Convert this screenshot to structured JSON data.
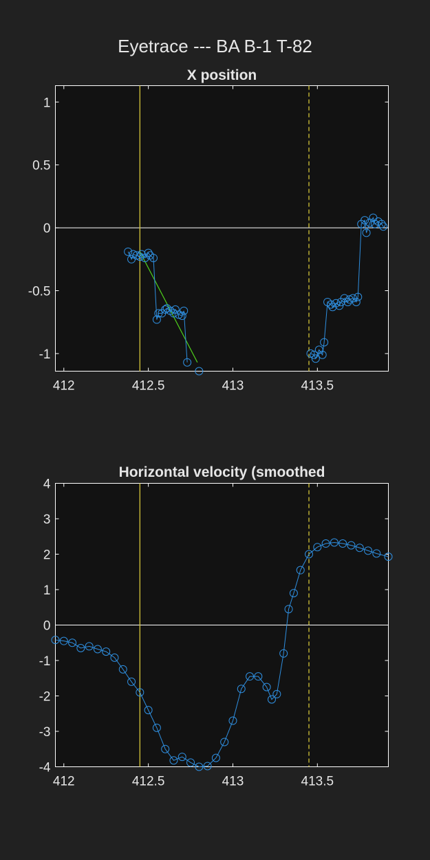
{
  "figure_title": "Eyetrace --- BA B-1 T-82",
  "colors": {
    "background": "#212121",
    "axes_background": "#121212",
    "axes_edge": "#ffffff",
    "text": "#e6e6e6",
    "data": "#2f8fe0",
    "fit_line": "#4fd11c",
    "event_line": "#d6c63a",
    "zero_line": "#ffffff"
  },
  "chart_data": [
    {
      "type": "line",
      "title": "X position",
      "xlabel": "",
      "ylabel": "",
      "xlim": [
        411.95,
        413.92
      ],
      "ylim": [
        -1.14,
        1.13
      ],
      "xticks": [
        412,
        412.5,
        413,
        413.5
      ],
      "xtick_labels": [
        "412",
        "412.5",
        "413",
        "413.5"
      ],
      "yticks": [
        1,
        0.5,
        0,
        -0.5,
        -1
      ],
      "ytick_labels": [
        "1",
        "0.5",
        "0",
        "-0.5",
        "-1"
      ],
      "grid": false,
      "marker": "circle-open",
      "series": [
        {
          "values": [
            [
              412.38,
              -0.19
            ],
            [
              412.4,
              -0.25
            ],
            [
              412.41,
              -0.21
            ],
            [
              412.43,
              -0.22
            ],
            [
              412.45,
              -0.23
            ],
            [
              412.46,
              -0.21
            ],
            [
              412.48,
              -0.24
            ],
            [
              412.5,
              -0.2
            ],
            [
              412.51,
              -0.22
            ],
            [
              412.53,
              -0.24
            ],
            [
              412.55,
              -0.73
            ],
            [
              412.56,
              -0.68
            ],
            [
              412.58,
              -0.68
            ],
            [
              412.6,
              -0.65
            ],
            [
              412.61,
              -0.64
            ],
            [
              412.63,
              -0.66
            ],
            [
              412.65,
              -0.68
            ],
            [
              412.66,
              -0.65
            ],
            [
              412.68,
              -0.69
            ],
            [
              412.7,
              -0.7
            ],
            [
              412.71,
              -0.66
            ],
            [
              412.73,
              -1.07
            ]
          ]
        },
        {
          "values": [
            [
              412.8,
              -1.14
            ]
          ],
          "line": false
        },
        {
          "values": [
            [
              413.46,
              -1.0
            ],
            [
              413.48,
              -1.01
            ],
            [
              413.49,
              -1.04
            ],
            [
              413.51,
              -0.97
            ],
            [
              413.53,
              -1.01
            ],
            [
              413.54,
              -0.91
            ],
            [
              413.56,
              -0.59
            ],
            [
              413.58,
              -0.61
            ],
            [
              413.59,
              -0.63
            ],
            [
              413.61,
              -0.6
            ],
            [
              413.63,
              -0.62
            ],
            [
              413.64,
              -0.59
            ],
            [
              413.66,
              -0.56
            ],
            [
              413.68,
              -0.59
            ],
            [
              413.69,
              -0.57
            ],
            [
              413.71,
              -0.56
            ],
            [
              413.73,
              -0.59
            ],
            [
              413.74,
              -0.55
            ],
            [
              413.76,
              0.03
            ],
            [
              413.78,
              0.06
            ],
            [
              413.79,
              -0.04
            ],
            [
              413.81,
              0.04
            ],
            [
              413.83,
              0.08
            ],
            [
              413.84,
              0.03
            ],
            [
              413.86,
              0.05
            ],
            [
              413.88,
              0.03
            ],
            [
              413.89,
              0.01
            ]
          ]
        }
      ],
      "fit_line": [
        [
          412.45,
          -0.19
        ],
        [
          412.79,
          -1.07
        ]
      ],
      "event_lines": [
        {
          "x": 412.45,
          "style": "solid"
        },
        {
          "x": 413.45,
          "style": "dashed"
        }
      ],
      "zero_line": 0
    },
    {
      "type": "line",
      "title": "Horizontal velocity (smoothed",
      "xlabel": "",
      "ylabel": "",
      "xlim": [
        411.95,
        413.92
      ],
      "ylim": [
        -4.0,
        4.0
      ],
      "xticks": [
        412,
        412.5,
        413,
        413.5
      ],
      "xtick_labels": [
        "412",
        "412.5",
        "413",
        "413.5"
      ],
      "yticks": [
        4,
        3,
        2,
        1,
        0,
        -1,
        -2,
        -3,
        -4
      ],
      "ytick_labels": [
        "4",
        "3",
        "2",
        "1",
        "0",
        "-1",
        "-2",
        "-3",
        "-4"
      ],
      "grid": false,
      "marker": "circle-open",
      "series": [
        {
          "values": [
            [
              411.95,
              -0.42
            ],
            [
              412.0,
              -0.45
            ],
            [
              412.05,
              -0.5
            ],
            [
              412.1,
              -0.65
            ],
            [
              412.15,
              -0.6
            ],
            [
              412.2,
              -0.68
            ],
            [
              412.25,
              -0.75
            ],
            [
              412.3,
              -0.92
            ],
            [
              412.35,
              -1.25
            ],
            [
              412.4,
              -1.6
            ],
            [
              412.45,
              -1.9
            ],
            [
              412.5,
              -2.4
            ],
            [
              412.55,
              -2.9
            ],
            [
              412.6,
              -3.5
            ],
            [
              412.65,
              -3.82
            ],
            [
              412.7,
              -3.72
            ],
            [
              412.75,
              -3.88
            ],
            [
              412.8,
              -4.0
            ],
            [
              412.85,
              -3.98
            ],
            [
              412.9,
              -3.75
            ],
            [
              412.95,
              -3.3
            ],
            [
              413.0,
              -2.7
            ],
            [
              413.05,
              -1.8
            ],
            [
              413.1,
              -1.45
            ],
            [
              413.15,
              -1.45
            ],
            [
              413.2,
              -1.75
            ],
            [
              413.23,
              -2.1
            ],
            [
              413.26,
              -1.95
            ],
            [
              413.3,
              -0.8
            ],
            [
              413.33,
              0.45
            ],
            [
              413.36,
              0.9
            ],
            [
              413.4,
              1.55
            ],
            [
              413.45,
              2.0
            ],
            [
              413.5,
              2.2
            ],
            [
              413.55,
              2.3
            ],
            [
              413.6,
              2.33
            ],
            [
              413.65,
              2.3
            ],
            [
              413.7,
              2.25
            ],
            [
              413.75,
              2.18
            ],
            [
              413.8,
              2.1
            ],
            [
              413.85,
              2.02
            ],
            [
              413.92,
              1.93
            ]
          ]
        }
      ],
      "event_lines": [
        {
          "x": 412.45,
          "style": "solid"
        },
        {
          "x": 413.45,
          "style": "dashed"
        }
      ],
      "zero_line": 0
    }
  ]
}
